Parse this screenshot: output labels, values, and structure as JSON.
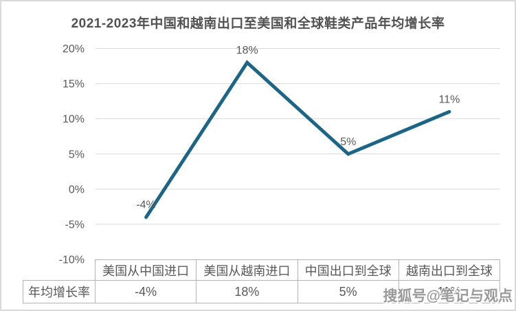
{
  "chart_data": {
    "type": "line",
    "title": "2021-2023年中国和越南出口至美国和全球鞋类产品年均增长率",
    "categories": [
      "美国从中国进口",
      "美国从越南进口",
      "中国出口到全球",
      "越南出口到全球"
    ],
    "series": [
      {
        "name": "年均增长率",
        "values": [
          -4,
          18,
          5,
          11
        ]
      }
    ],
    "data_labels": [
      "-4%",
      "18%",
      "5%",
      "11%"
    ],
    "y_ticks": [
      {
        "label": "20%",
        "value": 20
      },
      {
        "label": "15%",
        "value": 15
      },
      {
        "label": "10%",
        "value": 10
      },
      {
        "label": "5%",
        "value": 5
      },
      {
        "label": "0%",
        "value": 0
      },
      {
        "label": "-5%",
        "value": -5
      },
      {
        "label": "-10%",
        "value": -10
      }
    ],
    "ylim": [
      -10,
      20
    ],
    "grid": true,
    "legend_position": "none",
    "xlabel": "",
    "ylabel": ""
  },
  "table": {
    "row_label": "年均增长率",
    "headers": [
      "美国从中国进口",
      "美国从越南进口",
      "中国出口到全球",
      "越南出口到全球"
    ],
    "values": [
      "-4%",
      "18%",
      "5%",
      "11%"
    ]
  },
  "watermark": {
    "text": "搜狐号@笔记与观点"
  },
  "colors": {
    "line": "#1c6587",
    "text": "#595959",
    "title_text": "#525252",
    "gridline": "#d9d9d9",
    "table_border": "#b3b3b3",
    "frame_border": "#d9d9d9",
    "watermark_text": "#9a9a9a",
    "background": "#ffffff"
  }
}
